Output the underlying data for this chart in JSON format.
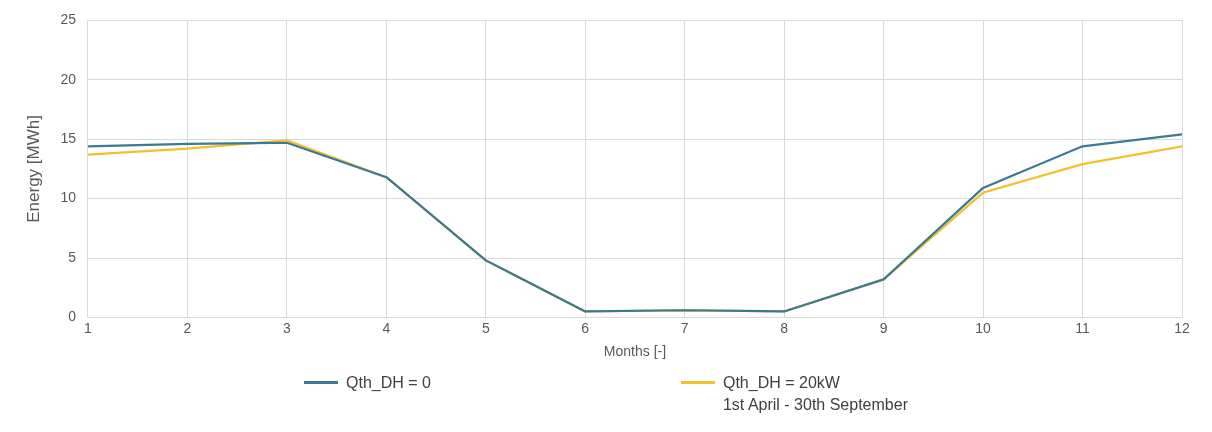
{
  "chart_data": {
    "type": "line",
    "xlabel": "Months [-]",
    "ylabel": "Energy [MWh]",
    "x": [
      1,
      2,
      3,
      4,
      5,
      6,
      7,
      8,
      9,
      10,
      11,
      12
    ],
    "xlim": [
      1,
      12
    ],
    "xticks": [
      1,
      2,
      3,
      4,
      5,
      6,
      7,
      8,
      9,
      10,
      11,
      12
    ],
    "ylim": [
      0,
      25
    ],
    "yticks": [
      0,
      5,
      10,
      15,
      20,
      25
    ],
    "grid": true,
    "legend": "bottom",
    "marker": "none",
    "line_style": "solid",
    "series": [
      {
        "name": "Qth_DH = 0",
        "color": "#3b7a94",
        "values": [
          14.4,
          14.6,
          14.7,
          11.8,
          4.8,
          0.5,
          0.6,
          0.5,
          3.2,
          10.9,
          14.4,
          15.4
        ]
      },
      {
        "name": "Qth_DH = 20kW\n1st April - 30th September",
        "color": "#f2c12e",
        "values": [
          13.7,
          14.2,
          14.9,
          11.8,
          4.8,
          0.5,
          0.6,
          0.5,
          3.2,
          10.5,
          12.9,
          14.4
        ]
      }
    ]
  }
}
